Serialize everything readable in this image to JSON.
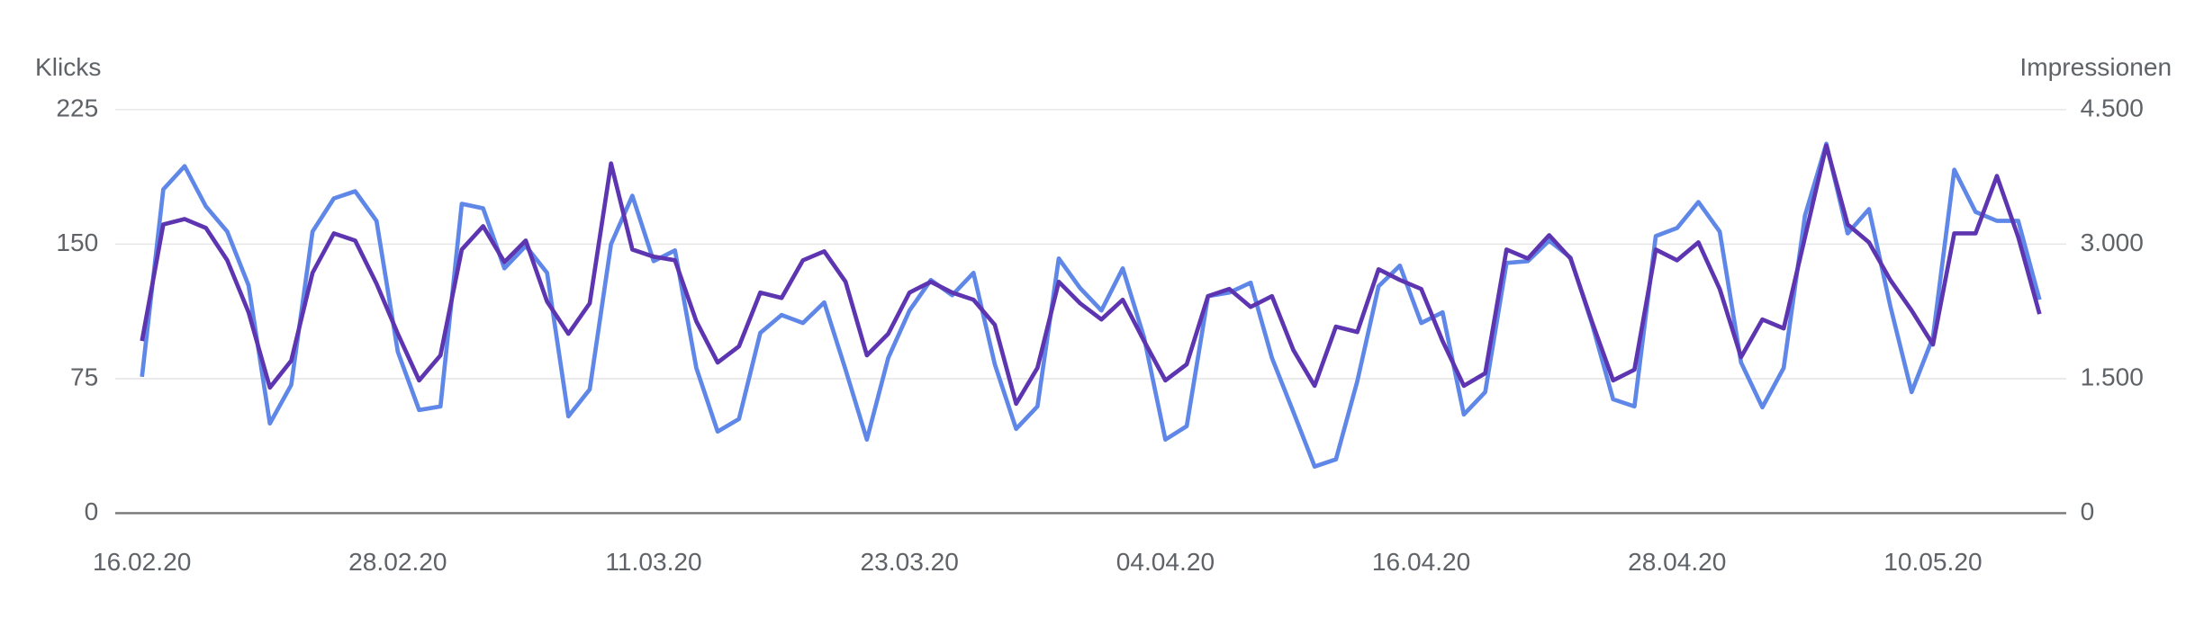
{
  "chart_data": {
    "type": "line",
    "categories": [
      "16.02.20",
      null,
      null,
      null,
      null,
      null,
      null,
      null,
      null,
      null,
      null,
      null,
      "28.02.20",
      null,
      null,
      null,
      null,
      null,
      null,
      null,
      null,
      null,
      null,
      null,
      "11.03.20",
      null,
      null,
      null,
      null,
      null,
      null,
      null,
      null,
      null,
      null,
      null,
      "23.03.20",
      null,
      null,
      null,
      null,
      null,
      null,
      null,
      null,
      null,
      null,
      null,
      "04.04.20",
      null,
      null,
      null,
      null,
      null,
      null,
      null,
      null,
      null,
      null,
      null,
      "16.04.20",
      null,
      null,
      null,
      null,
      null,
      null,
      null,
      null,
      null,
      null,
      null,
      "28.04.20",
      null,
      null,
      null,
      null,
      null,
      null,
      null,
      null,
      null,
      null,
      null,
      "10.05.20",
      null,
      null,
      null,
      null,
      null
    ],
    "series": [
      {
        "name": "Impressionen",
        "color": "#5f87e8",
        "axis": "y2",
        "values": [
          1520,
          3610,
          3870,
          3420,
          3140,
          2540,
          1000,
          1430,
          3140,
          3510,
          3590,
          3260,
          1800,
          1150,
          1190,
          3450,
          3400,
          2730,
          2980,
          2680,
          1080,
          1380,
          3000,
          3540,
          2810,
          2930,
          1620,
          910,
          1050,
          2010,
          2210,
          2120,
          2350,
          1600,
          820,
          1730,
          2260,
          2600,
          2430,
          2680,
          1660,
          940,
          1190,
          2840,
          2510,
          2260,
          2730,
          1960,
          820,
          970,
          2420,
          2460,
          2570,
          1730,
          1130,
          520,
          600,
          1470,
          2530,
          2760,
          2120,
          2240,
          1100,
          1350,
          2790,
          2810,
          3040,
          2850,
          2120,
          1270,
          1190,
          3090,
          3180,
          3470,
          3140,
          1680,
          1180,
          1620,
          3320,
          4120,
          3120,
          3390,
          2310,
          1350,
          1960,
          3830,
          3360,
          3260,
          3260,
          2380
        ]
      },
      {
        "name": "Klicks",
        "color": "#5e35b1",
        "values": [
          96,
          161,
          164,
          159,
          141,
          112,
          70,
          85,
          134,
          156,
          152,
          128,
          100,
          74,
          88,
          147,
          160,
          140,
          152,
          118,
          100,
          117,
          195,
          147,
          143,
          141,
          107,
          84,
          93,
          123,
          120,
          141,
          146,
          129,
          88,
          100,
          123,
          129,
          123,
          119,
          105,
          61,
          81,
          129,
          117,
          108,
          119,
          96,
          74,
          83,
          121,
          125,
          115,
          121,
          91,
          71,
          104,
          101,
          136,
          130,
          125,
          96,
          71,
          78,
          147,
          142,
          155,
          142,
          107,
          74,
          80,
          147,
          141,
          151,
          125,
          87,
          108,
          103,
          154,
          205,
          161,
          151,
          130,
          113,
          94,
          156,
          156,
          188,
          154,
          111
        ]
      }
    ],
    "ylim": [
      0,
      225
    ],
    "yticks": [
      0,
      75,
      150,
      225
    ],
    "y2lim": [
      0,
      4500
    ],
    "y2ticks": [
      0,
      {
        "value": 1500,
        "label": "1.500"
      },
      {
        "value": 3000,
        "label": "3.000"
      },
      {
        "value": 4500,
        "label": "4.500"
      }
    ],
    "grid": true
  }
}
